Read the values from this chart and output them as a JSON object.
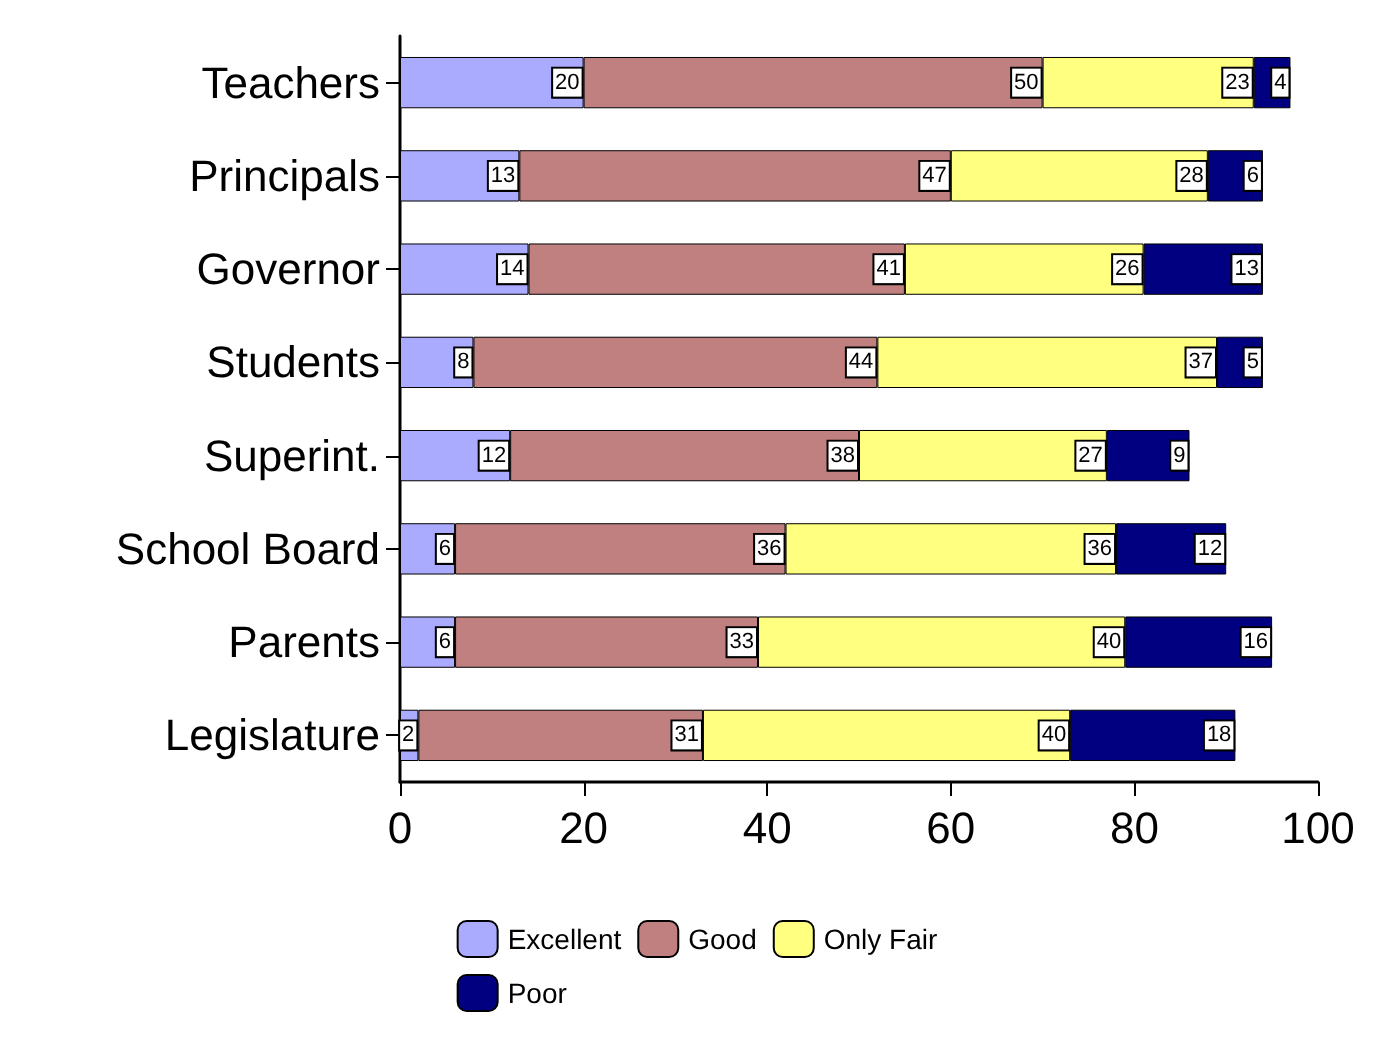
{
  "chart_data": {
    "type": "bar",
    "orientation": "horizontal",
    "stacked": true,
    "data_labels": true,
    "grid": false,
    "legend": "bottom",
    "categories": [
      "Teachers",
      "Principals",
      "Governor",
      "Students",
      "Superint.",
      "School Board",
      "Parents",
      "Legislature"
    ],
    "xlim": [
      0,
      100
    ],
    "xticks": [
      0,
      20,
      40,
      60,
      80,
      100
    ],
    "series": [
      {
        "name": "Excellent",
        "color": "#aaaaff",
        "values": [
          20,
          13,
          14,
          8,
          12,
          6,
          6,
          2
        ]
      },
      {
        "name": "Good",
        "color": "#c08080",
        "values": [
          50,
          47,
          41,
          44,
          38,
          36,
          33,
          31
        ]
      },
      {
        "name": "Only Fair",
        "color": "#ffff80",
        "values": [
          23,
          28,
          26,
          37,
          27,
          36,
          40,
          40
        ]
      },
      {
        "name": "Poor",
        "color": "#000080",
        "values": [
          4,
          6,
          13,
          5,
          9,
          12,
          16,
          18
        ]
      }
    ]
  }
}
